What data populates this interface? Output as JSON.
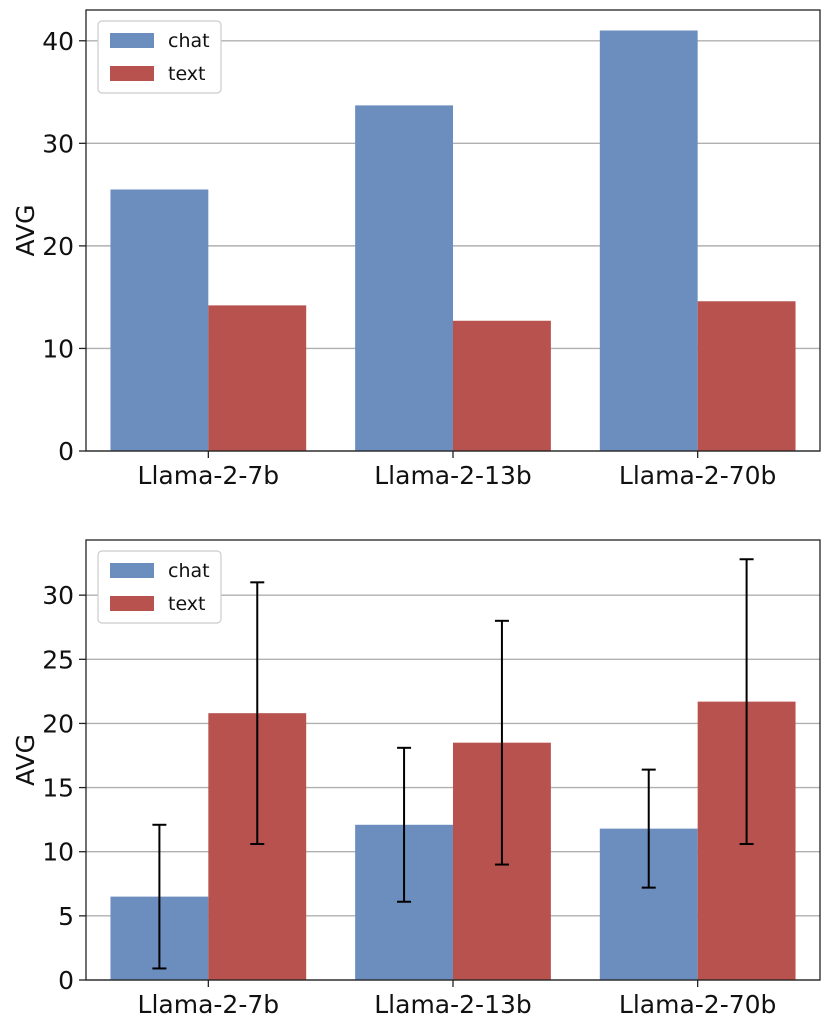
{
  "colors": {
    "chat": "#6c8ebf",
    "text": "#b8524e"
  },
  "chart_data": [
    {
      "type": "bar",
      "categories": [
        "Llama-2-7b",
        "Llama-2-13b",
        "Llama-2-70b"
      ],
      "series": [
        {
          "name": "chat",
          "values": [
            25.5,
            33.7,
            41.0
          ]
        },
        {
          "name": "text",
          "values": [
            14.2,
            12.7,
            14.6
          ]
        }
      ],
      "ylabel": "AVG",
      "xlabel": "",
      "ylim": [
        0,
        43
      ],
      "yticks": [
        0,
        10,
        20,
        30,
        40
      ],
      "grid": "y",
      "legend_position": "top-left"
    },
    {
      "type": "bar",
      "categories": [
        "Llama-2-7b",
        "Llama-2-13b",
        "Llama-2-70b"
      ],
      "series": [
        {
          "name": "chat",
          "values": [
            6.5,
            12.1,
            11.8
          ],
          "errors": [
            5.6,
            6.0,
            4.6
          ]
        },
        {
          "name": "text",
          "values": [
            20.8,
            18.5,
            21.7
          ],
          "errors": [
            10.2,
            9.5,
            11.1
          ]
        }
      ],
      "ylabel": "AVG",
      "xlabel": "",
      "ylim": [
        0,
        34.3
      ],
      "yticks": [
        0,
        5,
        10,
        15,
        20,
        25,
        30
      ],
      "grid": "y",
      "legend_position": "top-left"
    }
  ]
}
